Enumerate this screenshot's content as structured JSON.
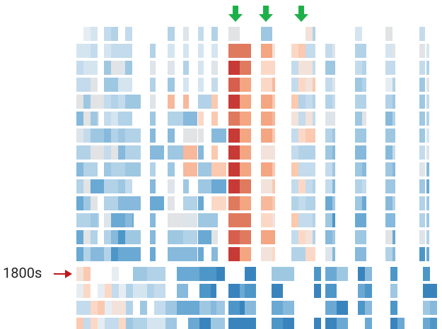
{
  "row_label": "1800s"
}
